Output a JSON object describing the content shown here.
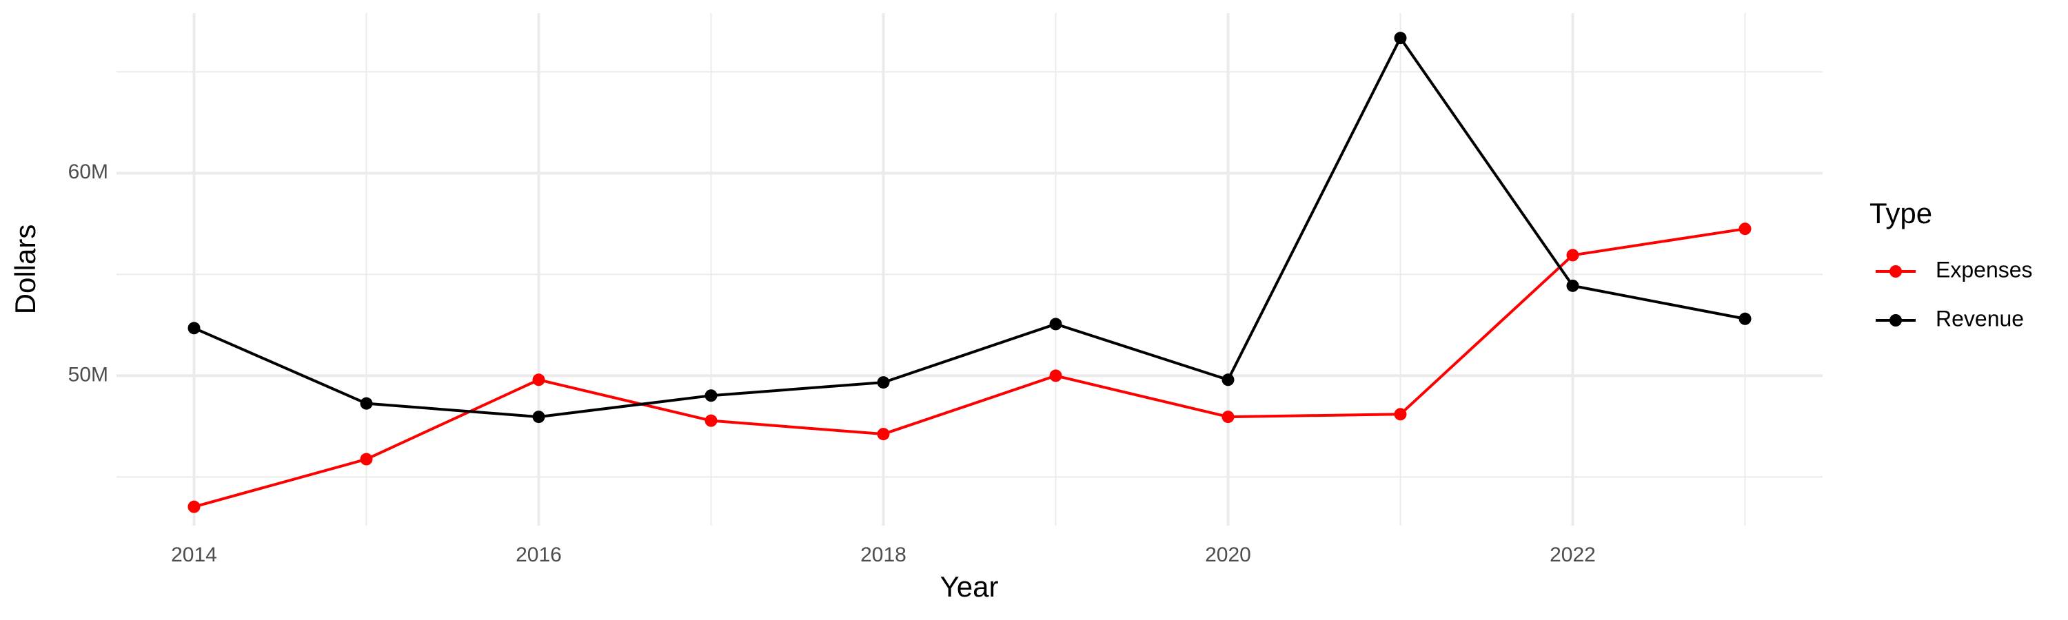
{
  "chart_data": {
    "type": "line",
    "x_label": "Year",
    "y_label": "Dollars",
    "legend_title": "Type",
    "x": [
      2014,
      2015,
      2016,
      2017,
      2018,
      2019,
      2020,
      2021,
      2022,
      2023
    ],
    "series": [
      {
        "name": "Expenses",
        "color": "#ff0000",
        "values": [
          43530000,
          45880000,
          49800000,
          47780000,
          47120000,
          50000000,
          47970000,
          48100000,
          55950000,
          57250000
        ]
      },
      {
        "name": "Revenue",
        "color": "#000000",
        "values": [
          52350000,
          48630000,
          47970000,
          49020000,
          49670000,
          52550000,
          49800000,
          66670000,
          54440000,
          52810000
        ]
      }
    ],
    "xlim": [
      2013.55,
      2023.45
    ],
    "xticks": [
      2014,
      2016,
      2018,
      2020,
      2022
    ],
    "ylim": [
      42600000,
      67900000
    ],
    "yticks": [
      {
        "value": 50000000,
        "label": "50M"
      },
      {
        "value": 60000000,
        "label": "60M"
      }
    ],
    "grid": true,
    "legend": "right"
  }
}
